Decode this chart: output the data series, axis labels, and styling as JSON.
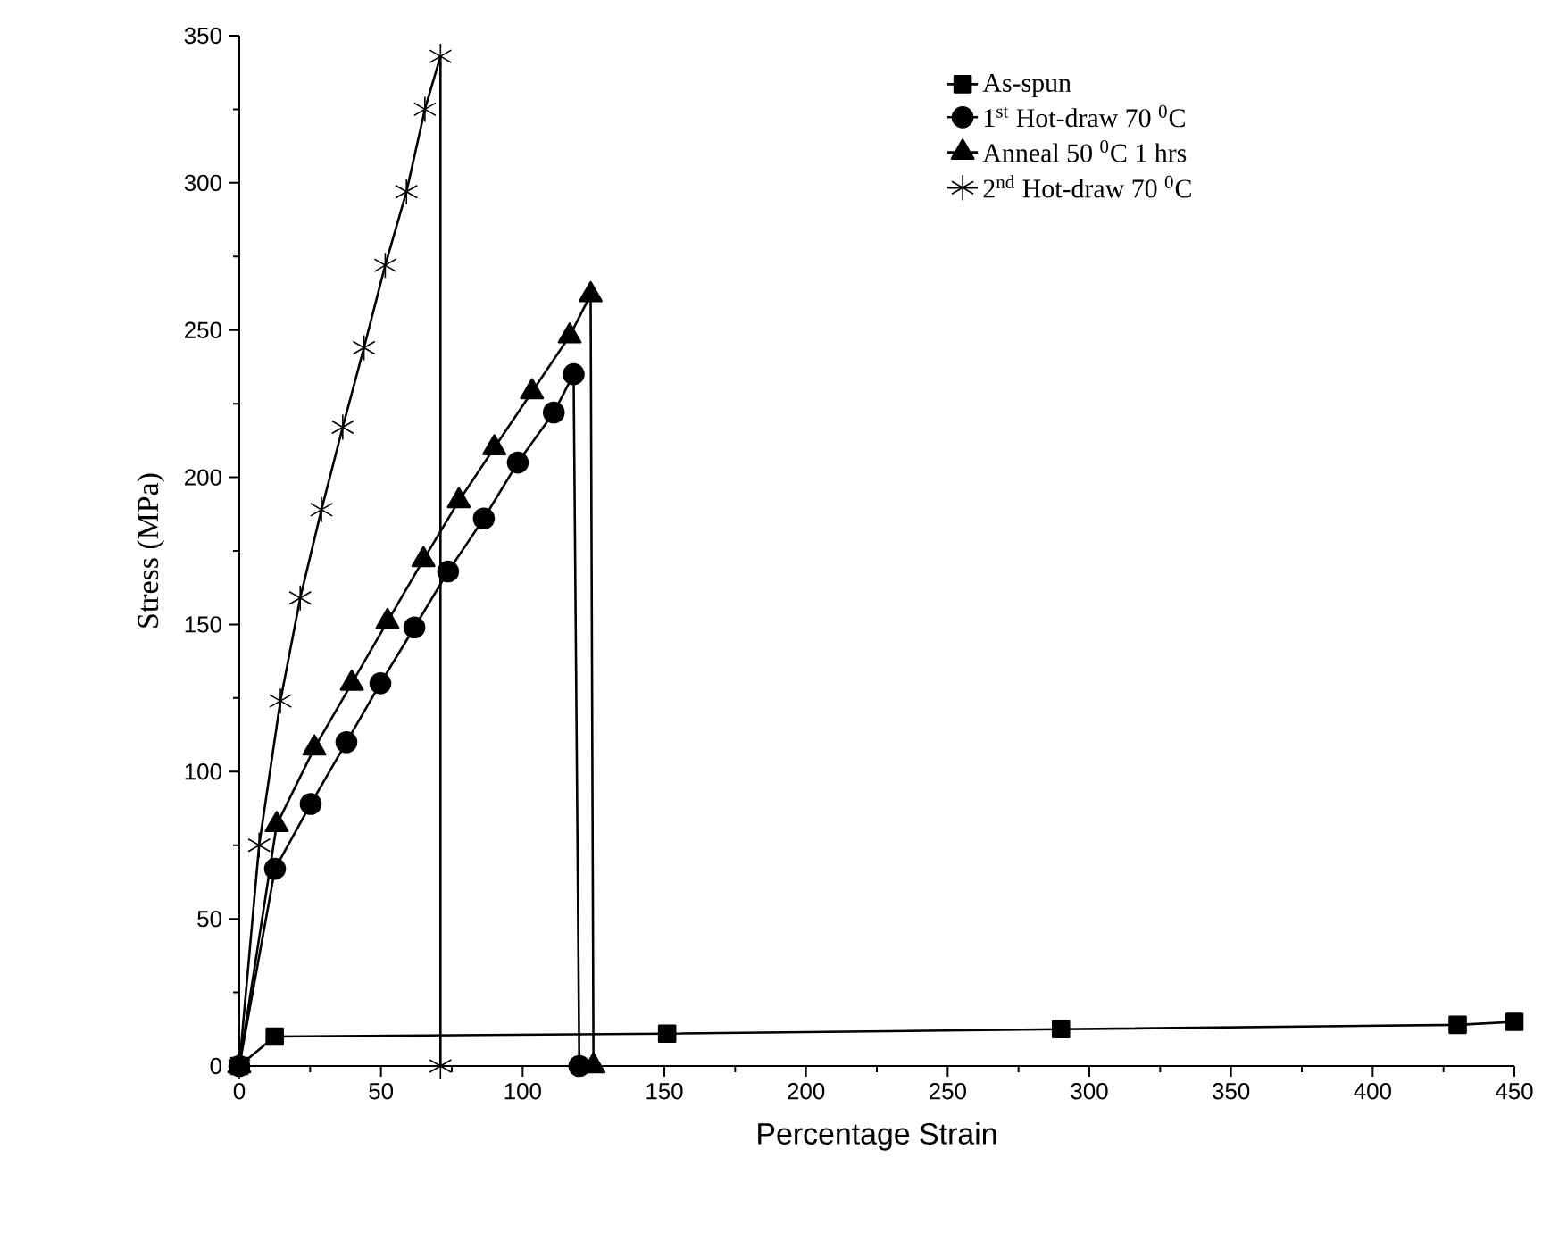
{
  "chart_data": {
    "type": "line",
    "xlabel": "Percentage Strain",
    "ylabel": "Stress (MPa)",
    "xlim": [
      0,
      450
    ],
    "ylim": [
      0,
      350
    ],
    "xticks": [
      0,
      50,
      100,
      150,
      200,
      250,
      300,
      350,
      400,
      450
    ],
    "yticks": [
      0,
      50,
      100,
      150,
      200,
      250,
      300,
      350
    ],
    "grid": false,
    "legend": "top right",
    "series": [
      {
        "name": "As-spun",
        "color": "#000000",
        "marker": "square",
        "x": [
          0,
          12.5,
          151,
          290,
          430,
          450
        ],
        "values": [
          0,
          10,
          11,
          12.5,
          14,
          15
        ]
      },
      {
        "name": "1$^{st}$ Hot-draw 70 $^{0}$C",
        "color": "#000000",
        "marker": "circle",
        "x": [
          0,
          12.6,
          25.2,
          37.8,
          49.8,
          61.8,
          73.7,
          86.3,
          98.3,
          111,
          118,
          120
        ],
        "values": [
          0,
          67,
          89,
          110,
          130,
          149,
          168,
          186,
          205,
          222,
          235,
          0
        ]
      },
      {
        "name": "Anneal 50 $^{0}$C 1 hrs",
        "color": "#000000",
        "marker": "triangle",
        "x": [
          0,
          13.2,
          26.5,
          39.7,
          52.3,
          65,
          77.5,
          90,
          103.3,
          116.6,
          124,
          125
        ],
        "values": [
          0,
          82,
          108,
          130,
          151,
          172,
          192,
          210,
          229,
          248,
          262,
          0
        ]
      },
      {
        "name": "2$^{nd}$ Hot-draw 70 $^{0}$C",
        "color": "#000000",
        "marker": "cross",
        "x": [
          0,
          7,
          14.5,
          21.5,
          29,
          36.5,
          44,
          51.5,
          59,
          65.5,
          71,
          71
        ],
        "values": [
          0,
          75,
          124,
          159,
          189,
          217,
          244,
          272,
          297,
          325,
          343,
          0
        ]
      }
    ]
  }
}
